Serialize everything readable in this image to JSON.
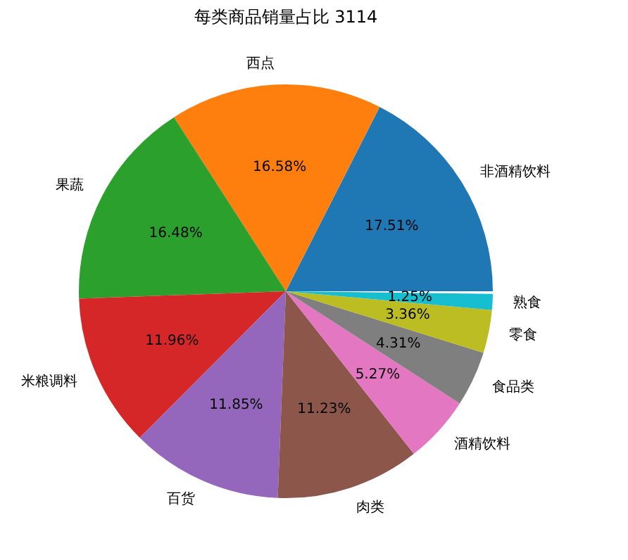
{
  "chart_data": {
    "type": "pie",
    "title": "每类商品销量占比 3114",
    "categories": [
      "非酒精饮料",
      "西点",
      "果蔬",
      "米粮调料",
      "百货",
      "肉类",
      "酒精饮料",
      "食品类",
      "零食",
      "熟食"
    ],
    "values": [
      17.51,
      16.58,
      16.48,
      11.96,
      11.85,
      11.23,
      5.27,
      4.31,
      3.36,
      1.25
    ],
    "colors": [
      "#1f77b4",
      "#ff7f0e",
      "#2ca02c",
      "#d62728",
      "#9467bd",
      "#8c564b",
      "#e377c2",
      "#7f7f7f",
      "#bcbd22",
      "#17becf"
    ],
    "value_labels": [
      "17.51%",
      "16.58%",
      "16.48%",
      "11.96%",
      "11.85%",
      "11.23%",
      "5.27%",
      "4.31%",
      "3.36%",
      "1.25%"
    ]
  }
}
